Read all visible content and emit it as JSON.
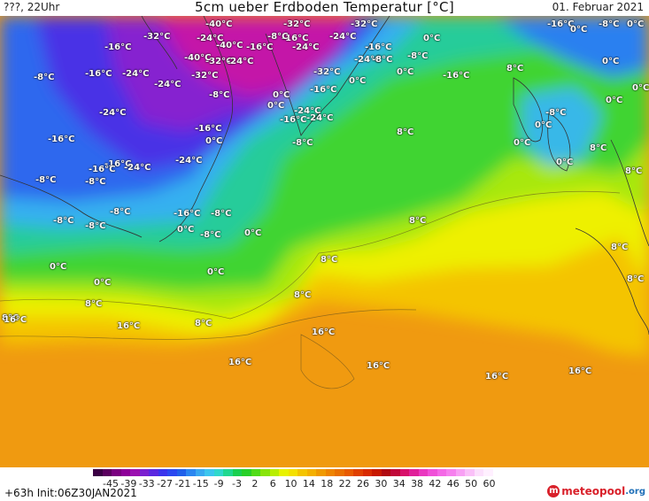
{
  "header": {
    "left": "???, 22Uhr",
    "title": "5cm ueber Erdboden Temperatur [°C]",
    "date": "01. Februar 2021"
  },
  "map": {
    "labels": [
      {
        "t": "-40°C"
      },
      {
        "t": "-32°C"
      },
      {
        "t": "-16°C"
      },
      {
        "t": "-32°C"
      },
      {
        "t": "-16°C"
      },
      {
        "t": "-8°C"
      },
      {
        "t": "0°C"
      },
      {
        "t": "-32°C"
      },
      {
        "t": "-24°C"
      },
      {
        "t": "-16°C"
      },
      {
        "t": "-24°C"
      },
      {
        "t": "-8°C"
      },
      {
        "t": "0°C"
      },
      {
        "t": "0°C"
      },
      {
        "t": "-16°C"
      },
      {
        "t": "-40°C"
      },
      {
        "t": "-32°C"
      },
      {
        "t": "-40°C"
      },
      {
        "t": "-24°C"
      },
      {
        "t": "-16°C"
      },
      {
        "t": "-24°C"
      },
      {
        "t": "-24°C"
      },
      {
        "t": "-8°C"
      },
      {
        "t": "0°C"
      },
      {
        "t": "-8°C"
      },
      {
        "t": "-16°C"
      },
      {
        "t": "-24°C"
      },
      {
        "t": "-32°C"
      },
      {
        "t": "-16°C"
      },
      {
        "t": "0°C"
      },
      {
        "t": "8°C"
      },
      {
        "t": "0°C"
      },
      {
        "t": "-8°C"
      },
      {
        "t": "-24°C"
      },
      {
        "t": "-32°C"
      },
      {
        "t": "-16°C"
      },
      {
        "t": "0°C"
      },
      {
        "t": "-8°C"
      },
      {
        "t": "-24°C"
      },
      {
        "t": "-24°C"
      },
      {
        "t": "0°C"
      },
      {
        "t": "-16°C"
      },
      {
        "t": "0°C"
      },
      {
        "t": "-24°C"
      },
      {
        "t": "-16°C"
      },
      {
        "t": "-8°C"
      },
      {
        "t": "0°C"
      },
      {
        "t": "0°C"
      },
      {
        "t": "-8°C"
      },
      {
        "t": "-16°C"
      },
      {
        "t": "-16°C"
      },
      {
        "t": "8°C"
      },
      {
        "t": "0°C"
      },
      {
        "t": "0°C"
      },
      {
        "t": "8°C"
      },
      {
        "t": "-24°C"
      },
      {
        "t": "-16°C"
      },
      {
        "t": "-24°C"
      },
      {
        "t": "0°C"
      },
      {
        "t": "8°C"
      },
      {
        "t": "8°C"
      },
      {
        "t": "-8°C"
      },
      {
        "t": "-8°C"
      },
      {
        "t": "-8°C"
      },
      {
        "t": "-16°C"
      },
      {
        "t": "-8°C"
      },
      {
        "t": "-8°C"
      },
      {
        "t": "-8°C"
      },
      {
        "t": "0°C"
      },
      {
        "t": "-8°C"
      },
      {
        "t": "0°C"
      },
      {
        "t": "8°C"
      },
      {
        "t": "8°C"
      },
      {
        "t": "0°C"
      },
      {
        "t": "0°C"
      },
      {
        "t": "0°C"
      },
      {
        "t": "8°C"
      },
      {
        "t": "8°C"
      },
      {
        "t": "8°C"
      },
      {
        "t": "8°C"
      },
      {
        "t": "16°C"
      },
      {
        "t": "16°C"
      },
      {
        "t": "8°C"
      },
      {
        "t": "16°C"
      },
      {
        "t": "16°C"
      },
      {
        "t": "16°C"
      },
      {
        "t": "16°C"
      },
      {
        "t": "16°C"
      }
    ]
  },
  "legend": {
    "colors": [
      "#3a0044",
      "#5a005f",
      "#7a0080",
      "#8e0099",
      "#9b10b0",
      "#7a20d0",
      "#5a28e0",
      "#3a34ec",
      "#2a48f0",
      "#2060ea",
      "#2a86f0",
      "#38a8f0",
      "#3cc6ee",
      "#30d8cc",
      "#20d890",
      "#1ad050",
      "#28d028",
      "#50dc18",
      "#88e40a",
      "#b8ee00",
      "#e8f200",
      "#f4e000",
      "#f4c400",
      "#f4b000",
      "#f09a00",
      "#ee8400",
      "#ea7000",
      "#e85a00",
      "#e04000",
      "#d82a00",
      "#c81800",
      "#b00a10",
      "#c00838",
      "#d8106a",
      "#e0209a",
      "#ea38c0",
      "#f050d8",
      "#f468e6",
      "#f680ee",
      "#f8a0f4",
      "#fac0f8",
      "#fce0fc",
      "#fff0ff"
    ],
    "ticks": [
      "-45",
      "-39",
      "-33",
      "-27",
      "-21",
      "-15",
      "-9",
      "-3",
      "2",
      "6",
      "10",
      "14",
      "18",
      "22",
      "26",
      "30",
      "34",
      "38",
      "42",
      "46",
      "50",
      "60"
    ]
  },
  "footer": {
    "init": "+63h  Init:06Z30JAN2021",
    "brand_main": "meteopool",
    "brand_suffix": ".org",
    "brand_mark": "m"
  }
}
